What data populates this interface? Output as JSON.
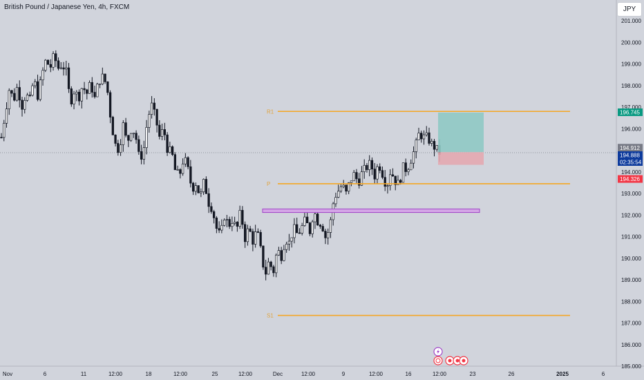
{
  "header": {
    "title": "British Pound / Japanese Yen, 4h, FXCM",
    "currency": "JPY"
  },
  "colors": {
    "background": "#d1d4dc",
    "candle": "#131722",
    "pivot_line": "#f5a623",
    "pivot_label": "#e0a440",
    "zone_fill": "#d4a6e6",
    "zone_stroke": "#a044c8",
    "target_fill": "#8fc9c4",
    "stop_fill": "#e3a8b0",
    "price_tag_target": "#089981",
    "price_tag_current": "#0d3a9c",
    "price_tag_stop": "#f23645",
    "price_tag_last": "#787b86"
  },
  "chart_data": {
    "type": "candlestick",
    "title": "British Pound / Japanese Yen, 4h, FXCM",
    "y_axis": {
      "ylim": [
        184.9,
        201.6
      ],
      "ticks": [
        "201.000",
        "200.000",
        "199.000",
        "198.000",
        "197.000",
        "196.000",
        "195.000",
        "194.000",
        "193.000",
        "192.000",
        "191.000",
        "190.000",
        "189.000",
        "188.000",
        "187.000",
        "186.000",
        "185.000"
      ]
    },
    "x_axis": {
      "ticks": [
        "Nov",
        "6",
        "11",
        "12:00",
        "18",
        "12:00",
        "25",
        "12:00",
        "Dec",
        "12:00",
        "9",
        "12:00",
        "16",
        "12:00",
        "23",
        "26",
        "2025",
        "6"
      ]
    },
    "close_path": [
      195.6,
      196.8,
      197.9,
      197.3,
      198.0,
      197.0,
      197.6,
      197.3,
      198.3,
      197.5,
      198.5,
      199.2,
      198.8,
      199.4,
      198.8,
      199.0,
      198.6,
      197.2,
      197.8,
      197.4,
      198.0,
      197.6,
      198.1,
      197.4,
      198.2,
      198.4,
      198.0,
      196.4,
      195.3,
      195.0,
      196.2,
      195.3,
      196.0,
      195.8,
      194.6,
      194.9,
      196.4,
      197.1,
      196.5,
      195.6,
      196.0,
      195.0,
      194.9,
      193.9,
      193.9,
      194.7,
      194.1,
      193.2,
      193.5,
      192.8,
      193.6,
      192.6,
      192.3,
      191.4,
      191.0,
      192.0,
      191.5,
      191.8,
      191.3,
      192.2,
      190.9,
      191.4,
      190.8,
      191.3,
      190.3,
      189.2,
      189.9,
      189.3,
      190.4,
      190.1,
      190.9,
      190.7,
      191.4,
      191.1,
      191.4,
      191.8,
      191.2,
      192.2,
      191.7,
      191.6,
      190.9,
      191.5,
      192.8,
      193.1,
      193.4,
      193.0,
      193.6,
      193.9,
      193.5,
      194.0,
      194.2,
      194.4,
      193.8,
      194.4,
      193.9,
      193.3,
      194.1,
      193.6,
      193.4,
      194.2,
      194.1,
      194.6,
      195.1,
      195.8,
      195.6,
      195.6,
      195.3,
      195.1,
      194.89
    ],
    "levels": [
      {
        "label": "R1",
        "value": 196.8
      },
      {
        "label": "P",
        "value": 193.45
      },
      {
        "label": "S1",
        "value": 187.35
      }
    ],
    "zone": {
      "low": 192.15,
      "high": 192.25
    },
    "position": {
      "entry": 194.912,
      "target": 196.745,
      "stop": 194.326
    },
    "price_tags": [
      {
        "text": "196.745",
        "value": 196.745,
        "color": "#089981"
      },
      {
        "text": "194.912",
        "value": 194.912,
        "color": "#787b86"
      },
      {
        "text": "194.888",
        "value": 194.888,
        "color": "#0d3a9c"
      },
      {
        "text": "02:35:54",
        "value": 194.888,
        "color": "#0d3a9c"
      },
      {
        "text": "194.326",
        "value": 194.326,
        "color": "#f23645"
      }
    ],
    "current_price": 194.888,
    "grid": false,
    "legend": "none"
  }
}
